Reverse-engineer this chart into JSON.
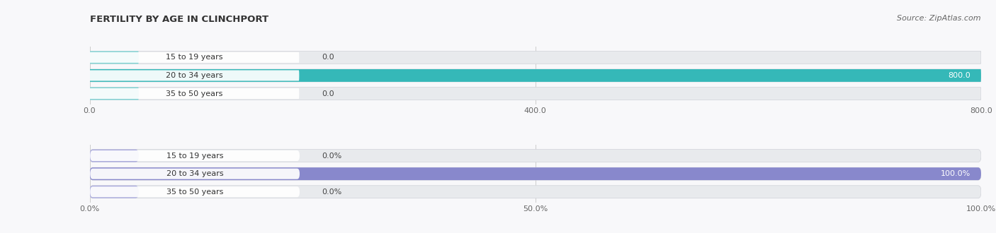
{
  "title": "FERTILITY BY AGE IN CLINCHPORT",
  "source": "Source: ZipAtlas.com",
  "categories": [
    "15 to 19 years",
    "20 to 34 years",
    "35 to 50 years"
  ],
  "abs_values": [
    0.0,
    800.0,
    0.0
  ],
  "abs_max": 800.0,
  "abs_ticks": [
    0.0,
    400.0,
    800.0
  ],
  "pct_values": [
    0.0,
    100.0,
    0.0
  ],
  "pct_max": 100.0,
  "pct_ticks": [
    0.0,
    50.0,
    100.0
  ],
  "abs_bar_color": "#35b8b8",
  "abs_bar_color_small": "#7fd4d4",
  "pct_bar_color": "#8888cc",
  "pct_bar_color_small": "#aaaadd",
  "track_color": "#e8eaed",
  "label_bg_color": "#f5f5f8",
  "background_color": "#f8f8fa",
  "title_fontsize": 9.5,
  "source_fontsize": 8,
  "label_fontsize": 8,
  "value_fontsize": 8,
  "tick_fontsize": 8
}
